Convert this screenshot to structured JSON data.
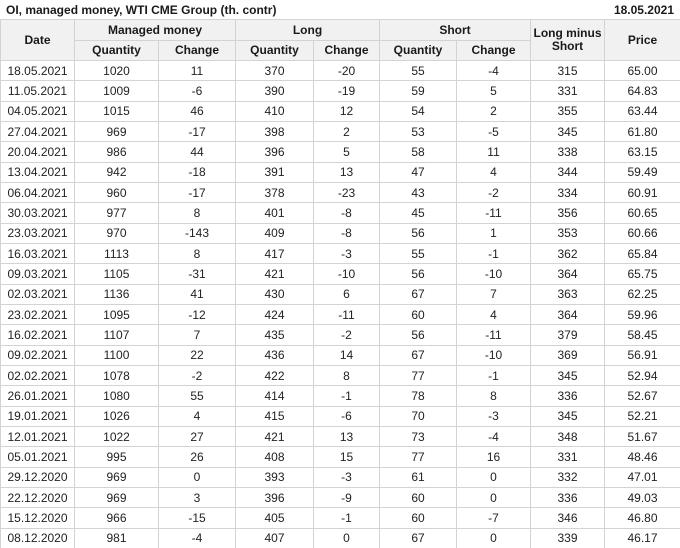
{
  "title": "OI, managed money, WTI CME Group (th. contr)",
  "report_date": "18.05.2021",
  "colors": {
    "positive": "#129612",
    "negative": "#d43c3c",
    "header_bg": "#f1f1f1",
    "grid_border": "#d3d3d3"
  },
  "table": {
    "group_headers": {
      "date": "Date",
      "managed_money": "Managed money",
      "long": "Long",
      "short": "Short",
      "long_minus_short": "Long minus Short",
      "price": "Price"
    },
    "sub_headers": {
      "quantity": "Quantity",
      "change": "Change"
    },
    "rows": [
      {
        "date": "18.05.2021",
        "mm_qty": "1020",
        "mm_chg": "11",
        "mm_dir": "pos",
        "long_qty": "370",
        "long_chg": "-20",
        "long_dir": "neg",
        "short_qty": "55",
        "short_chg": "-4",
        "short_dir": "neg",
        "lms": "315",
        "price": "65.00"
      },
      {
        "date": "11.05.2021",
        "mm_qty": "1009",
        "mm_chg": "-6",
        "mm_dir": "neg",
        "long_qty": "390",
        "long_chg": "-19",
        "long_dir": "neg",
        "short_qty": "59",
        "short_chg": "5",
        "short_dir": "pos",
        "lms": "331",
        "price": "64.83"
      },
      {
        "date": "04.05.2021",
        "mm_qty": "1015",
        "mm_chg": "46",
        "mm_dir": "pos",
        "long_qty": "410",
        "long_chg": "12",
        "long_dir": "pos",
        "short_qty": "54",
        "short_chg": "2",
        "short_dir": "pos",
        "lms": "355",
        "price": "63.44"
      },
      {
        "date": "27.04.2021",
        "mm_qty": "969",
        "mm_chg": "-17",
        "mm_dir": "neg",
        "long_qty": "398",
        "long_chg": "2",
        "long_dir": "pos",
        "short_qty": "53",
        "short_chg": "-5",
        "short_dir": "neg",
        "lms": "345",
        "price": "61.80"
      },
      {
        "date": "20.04.2021",
        "mm_qty": "986",
        "mm_chg": "44",
        "mm_dir": "pos",
        "long_qty": "396",
        "long_chg": "5",
        "long_dir": "pos",
        "short_qty": "58",
        "short_chg": "11",
        "short_dir": "pos",
        "lms": "338",
        "price": "63.15"
      },
      {
        "date": "13.04.2021",
        "mm_qty": "942",
        "mm_chg": "-18",
        "mm_dir": "neg",
        "long_qty": "391",
        "long_chg": "13",
        "long_dir": "pos",
        "short_qty": "47",
        "short_chg": "4",
        "short_dir": "pos",
        "lms": "344",
        "price": "59.49"
      },
      {
        "date": "06.04.2021",
        "mm_qty": "960",
        "mm_chg": "-17",
        "mm_dir": "neg",
        "long_qty": "378",
        "long_chg": "-23",
        "long_dir": "neg",
        "short_qty": "43",
        "short_chg": "-2",
        "short_dir": "neg",
        "lms": "334",
        "price": "60.91"
      },
      {
        "date": "30.03.2021",
        "mm_qty": "977",
        "mm_chg": "8",
        "mm_dir": "pos",
        "long_qty": "401",
        "long_chg": "-8",
        "long_dir": "neg",
        "short_qty": "45",
        "short_chg": "-11",
        "short_dir": "neg",
        "lms": "356",
        "price": "60.65"
      },
      {
        "date": "23.03.2021",
        "mm_qty": "970",
        "mm_chg": "-143",
        "mm_dir": "neg",
        "long_qty": "409",
        "long_chg": "-8",
        "long_dir": "neg",
        "short_qty": "56",
        "short_chg": "1",
        "short_dir": "pos",
        "lms": "353",
        "price": "60.66"
      },
      {
        "date": "16.03.2021",
        "mm_qty": "1113",
        "mm_chg": "8",
        "mm_dir": "pos",
        "long_qty": "417",
        "long_chg": "-3",
        "long_dir": "neg",
        "short_qty": "55",
        "short_chg": "-1",
        "short_dir": "neg",
        "lms": "362",
        "price": "65.84"
      },
      {
        "date": "09.03.2021",
        "mm_qty": "1105",
        "mm_chg": "-31",
        "mm_dir": "neg",
        "long_qty": "421",
        "long_chg": "-10",
        "long_dir": "neg",
        "short_qty": "56",
        "short_chg": "-10",
        "short_dir": "neg",
        "lms": "364",
        "price": "65.75"
      },
      {
        "date": "02.03.2021",
        "mm_qty": "1136",
        "mm_chg": "41",
        "mm_dir": "pos",
        "long_qty": "430",
        "long_chg": "6",
        "long_dir": "pos",
        "short_qty": "67",
        "short_chg": "7",
        "short_dir": "pos",
        "lms": "363",
        "price": "62.25"
      },
      {
        "date": "23.02.2021",
        "mm_qty": "1095",
        "mm_chg": "-12",
        "mm_dir": "neg",
        "long_qty": "424",
        "long_chg": "-11",
        "long_dir": "neg",
        "short_qty": "60",
        "short_chg": "4",
        "short_dir": "pos",
        "lms": "364",
        "price": "59.96"
      },
      {
        "date": "16.02.2021",
        "mm_qty": "1107",
        "mm_chg": "7",
        "mm_dir": "pos",
        "long_qty": "435",
        "long_chg": "-2",
        "long_dir": "neg",
        "short_qty": "56",
        "short_chg": "-11",
        "short_dir": "neg",
        "lms": "379",
        "price": "58.45"
      },
      {
        "date": "09.02.2021",
        "mm_qty": "1100",
        "mm_chg": "22",
        "mm_dir": "pos",
        "long_qty": "436",
        "long_chg": "14",
        "long_dir": "pos",
        "short_qty": "67",
        "short_chg": "-10",
        "short_dir": "neg",
        "lms": "369",
        "price": "56.91"
      },
      {
        "date": "02.02.2021",
        "mm_qty": "1078",
        "mm_chg": "-2",
        "mm_dir": "neg",
        "long_qty": "422",
        "long_chg": "8",
        "long_dir": "pos",
        "short_qty": "77",
        "short_chg": "-1",
        "short_dir": "neg",
        "lms": "345",
        "price": "52.94"
      },
      {
        "date": "26.01.2021",
        "mm_qty": "1080",
        "mm_chg": "55",
        "mm_dir": "pos",
        "long_qty": "414",
        "long_chg": "-1",
        "long_dir": "neg",
        "short_qty": "78",
        "short_chg": "8",
        "short_dir": "pos",
        "lms": "336",
        "price": "52.67"
      },
      {
        "date": "19.01.2021",
        "mm_qty": "1026",
        "mm_chg": "4",
        "mm_dir": "pos",
        "long_qty": "415",
        "long_chg": "-6",
        "long_dir": "neg",
        "short_qty": "70",
        "short_chg": "-3",
        "short_dir": "neg",
        "lms": "345",
        "price": "52.21"
      },
      {
        "date": "12.01.2021",
        "mm_qty": "1022",
        "mm_chg": "27",
        "mm_dir": "pos",
        "long_qty": "421",
        "long_chg": "13",
        "long_dir": "pos",
        "short_qty": "73",
        "short_chg": "-4",
        "short_dir": "neg",
        "lms": "348",
        "price": "51.67"
      },
      {
        "date": "05.01.2021",
        "mm_qty": "995",
        "mm_chg": "26",
        "mm_dir": "pos",
        "long_qty": "408",
        "long_chg": "15",
        "long_dir": "pos",
        "short_qty": "77",
        "short_chg": "16",
        "short_dir": "pos",
        "lms": "331",
        "price": "48.46"
      },
      {
        "date": "29.12.2020",
        "mm_qty": "969",
        "mm_chg": "0",
        "mm_dir": "neg",
        "long_qty": "393",
        "long_chg": "-3",
        "long_dir": "neg",
        "short_qty": "61",
        "short_chg": "0",
        "short_dir": "pos",
        "lms": "332",
        "price": "47.01"
      },
      {
        "date": "22.12.2020",
        "mm_qty": "969",
        "mm_chg": "3",
        "mm_dir": "pos",
        "long_qty": "396",
        "long_chg": "-9",
        "long_dir": "neg",
        "short_qty": "60",
        "short_chg": "0",
        "short_dir": "pos",
        "lms": "336",
        "price": "49.03"
      },
      {
        "date": "15.12.2020",
        "mm_qty": "966",
        "mm_chg": "-15",
        "mm_dir": "neg",
        "long_qty": "405",
        "long_chg": "-1",
        "long_dir": "neg",
        "short_qty": "60",
        "short_chg": "-7",
        "short_dir": "neg",
        "lms": "346",
        "price": "46.80"
      },
      {
        "date": "08.12.2020",
        "mm_qty": "981",
        "mm_chg": "-4",
        "mm_dir": "neg",
        "long_qty": "407",
        "long_chg": "0",
        "long_dir": "pos",
        "short_qty": "67",
        "short_chg": "0",
        "short_dir": "neg",
        "lms": "339",
        "price": "46.17"
      }
    ]
  },
  "chart_data": {
    "type": "table",
    "title": "OI, managed money, WTI CME Group (th. contr)",
    "as_of_date": "18.05.2021",
    "columns": [
      "Date",
      "Managed money Quantity",
      "Managed money Change",
      "Long Quantity",
      "Long Change",
      "Short Quantity",
      "Short Change",
      "Long minus Short",
      "Price"
    ],
    "rows": [
      [
        "18.05.2021",
        1020,
        11,
        370,
        -20,
        55,
        -4,
        315,
        65.0
      ],
      [
        "11.05.2021",
        1009,
        -6,
        390,
        -19,
        59,
        5,
        331,
        64.83
      ],
      [
        "04.05.2021",
        1015,
        46,
        410,
        12,
        54,
        2,
        355,
        63.44
      ],
      [
        "27.04.2021",
        969,
        -17,
        398,
        2,
        53,
        -5,
        345,
        61.8
      ],
      [
        "20.04.2021",
        986,
        44,
        396,
        5,
        58,
        11,
        338,
        63.15
      ],
      [
        "13.04.2021",
        942,
        -18,
        391,
        13,
        47,
        4,
        344,
        59.49
      ],
      [
        "06.04.2021",
        960,
        -17,
        378,
        -23,
        43,
        -2,
        334,
        60.91
      ],
      [
        "30.03.2021",
        977,
        8,
        401,
        -8,
        45,
        -11,
        356,
        60.65
      ],
      [
        "23.03.2021",
        970,
        -143,
        409,
        -8,
        56,
        1,
        353,
        60.66
      ],
      [
        "16.03.2021",
        1113,
        8,
        417,
        -3,
        55,
        -1,
        362,
        65.84
      ],
      [
        "09.03.2021",
        1105,
        -31,
        421,
        -10,
        56,
        -10,
        364,
        65.75
      ],
      [
        "02.03.2021",
        1136,
        41,
        430,
        6,
        67,
        7,
        363,
        62.25
      ],
      [
        "23.02.2021",
        1095,
        -12,
        424,
        -11,
        60,
        4,
        364,
        59.96
      ],
      [
        "16.02.2021",
        1107,
        7,
        435,
        -2,
        56,
        -11,
        379,
        58.45
      ],
      [
        "09.02.2021",
        1100,
        22,
        436,
        14,
        67,
        -10,
        369,
        56.91
      ],
      [
        "02.02.2021",
        1078,
        -2,
        422,
        8,
        77,
        -1,
        345,
        52.94
      ],
      [
        "26.01.2021",
        1080,
        55,
        414,
        -1,
        78,
        8,
        336,
        52.67
      ],
      [
        "19.01.2021",
        1026,
        4,
        415,
        -6,
        70,
        -3,
        345,
        52.21
      ],
      [
        "12.01.2021",
        1022,
        27,
        421,
        13,
        73,
        -4,
        348,
        51.67
      ],
      [
        "05.01.2021",
        995,
        26,
        408,
        15,
        77,
        16,
        331,
        48.46
      ],
      [
        "29.12.2020",
        969,
        0,
        393,
        -3,
        61,
        0,
        332,
        47.01
      ],
      [
        "22.12.2020",
        969,
        3,
        396,
        -9,
        60,
        0,
        336,
        49.03
      ],
      [
        "15.12.2020",
        966,
        -15,
        405,
        -1,
        60,
        -7,
        346,
        46.8
      ],
      [
        "08.12.2020",
        981,
        -4,
        407,
        0,
        67,
        0,
        339,
        46.17
      ]
    ]
  }
}
